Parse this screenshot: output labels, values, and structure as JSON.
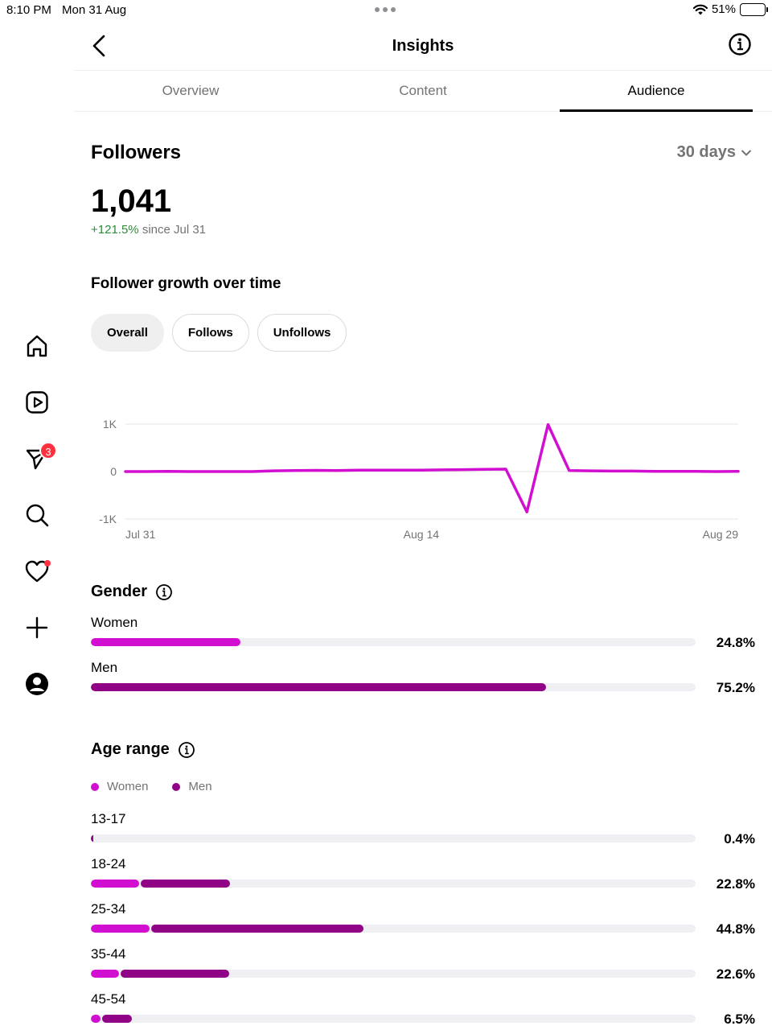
{
  "status_bar": {
    "time": "8:10 PM",
    "date": "Mon 31 Aug",
    "battery": "51%",
    "battery_level": 0.51
  },
  "header": {
    "title": "Insights"
  },
  "tabs": [
    {
      "label": "Overview",
      "active": false
    },
    {
      "label": "Content",
      "active": false
    },
    {
      "label": "Audience",
      "active": true
    }
  ],
  "sidebar": {
    "items": [
      {
        "icon": "home-icon"
      },
      {
        "icon": "reels-icon"
      },
      {
        "icon": "messages-icon",
        "badge": "3"
      },
      {
        "icon": "search-icon"
      },
      {
        "icon": "heart-icon",
        "dot": true
      },
      {
        "icon": "plus-icon"
      },
      {
        "icon": "profile-icon"
      }
    ]
  },
  "followers": {
    "title": "Followers",
    "period": "30 days",
    "count": "1,041",
    "change": "+121.5%",
    "since": "since Jul 31"
  },
  "growth": {
    "title": "Follower growth over time",
    "filters": [
      "Overall",
      "Follows",
      "Unfollows"
    ],
    "active_filter": "Overall"
  },
  "chart_data": {
    "type": "line",
    "y_ticks": [
      "1K",
      "0",
      "-1K"
    ],
    "x_ticks": [
      "Jul 31",
      "Aug 14",
      "Aug 29"
    ],
    "ylim": [
      -1000,
      1000
    ],
    "x": [
      "Jul 31",
      "Aug 1",
      "Aug 2",
      "Aug 3",
      "Aug 4",
      "Aug 5",
      "Aug 6",
      "Aug 7",
      "Aug 8",
      "Aug 9",
      "Aug 10",
      "Aug 11",
      "Aug 12",
      "Aug 13",
      "Aug 14",
      "Aug 15",
      "Aug 16",
      "Aug 17",
      "Aug 18",
      "Aug 19",
      "Aug 20",
      "Aug 21",
      "Aug 22",
      "Aug 23",
      "Aug 24",
      "Aug 25",
      "Aug 26",
      "Aug 27",
      "Aug 28",
      "Aug 29"
    ],
    "series": [
      {
        "values": [
          0,
          0,
          5,
          0,
          0,
          0,
          0,
          15,
          20,
          25,
          20,
          30,
          30,
          30,
          30,
          35,
          40,
          45,
          50,
          -850,
          990,
          20,
          15,
          10,
          10,
          5,
          5,
          5,
          0,
          5
        ],
        "color": "#d20fd0"
      }
    ],
    "grid": true
  },
  "gender": {
    "title": "Gender",
    "rows": [
      {
        "label": "Women",
        "percent": "24.8%",
        "value": 24.8
      },
      {
        "label": "Men",
        "percent": "75.2%",
        "value": 75.2
      }
    ]
  },
  "age": {
    "title": "Age range",
    "legend": [
      "Women",
      "Men"
    ],
    "rows": [
      {
        "label": "13-17",
        "percent": "0.4%",
        "women": 0.0,
        "men": 0.4
      },
      {
        "label": "18-24",
        "percent": "22.8%",
        "women": 8.0,
        "men": 14.8
      },
      {
        "label": "25-34",
        "percent": "44.8%",
        "women": 9.7,
        "men": 35.1
      },
      {
        "label": "35-44",
        "percent": "22.6%",
        "women": 4.7,
        "men": 17.9
      },
      {
        "label": "45-54",
        "percent": "6.5%",
        "women": 1.6,
        "men": 4.9
      }
    ]
  },
  "colors": {
    "women": "#d20fd0",
    "men": "#900386",
    "positive": "#2e8b3a"
  }
}
